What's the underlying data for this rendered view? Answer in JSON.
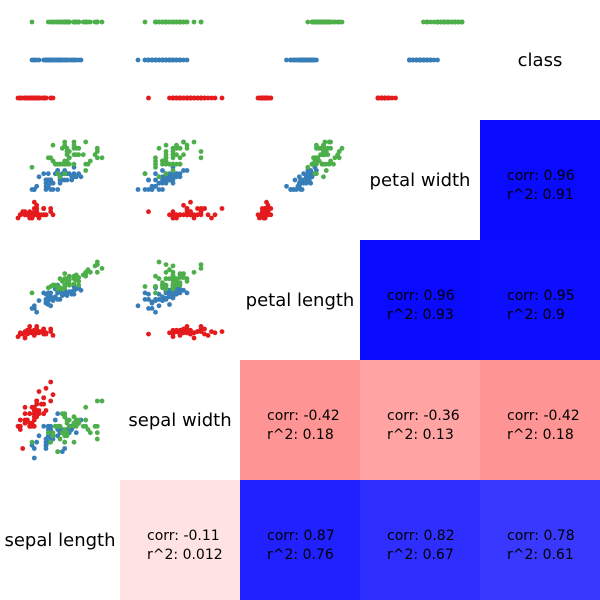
{
  "variables": [
    "sepal length",
    "sepal width",
    "petal length",
    "petal width",
    "class"
  ],
  "colors": {
    "setosa": "#e41a1c",
    "versicolor": "#377eb8",
    "virginica": "#4daf4a",
    "corr_positive": "#0000ff",
    "corr_negative": "#ff0000"
  },
  "chart_data": {
    "type": "scatter",
    "title": "",
    "layout": "pair-plot matrix; scatter panels upper-left, correlation tiles lower-right, variable names on the anti-diagonal",
    "correlations": [
      {
        "pair": [
          "sepal length",
          "sepal width"
        ],
        "corr": "-0.11",
        "r2": "0.012",
        "value": -0.11
      },
      {
        "pair": [
          "sepal length",
          "petal length"
        ],
        "corr": "0.87",
        "r2": "0.76",
        "value": 0.87
      },
      {
        "pair": [
          "sepal length",
          "petal width"
        ],
        "corr": "0.82",
        "r2": "0.67",
        "value": 0.82
      },
      {
        "pair": [
          "sepal length",
          "class"
        ],
        "corr": "0.78",
        "r2": "0.61",
        "value": 0.78
      },
      {
        "pair": [
          "sepal width",
          "petal length"
        ],
        "corr": "-0.42",
        "r2": "0.18",
        "value": -0.42
      },
      {
        "pair": [
          "sepal width",
          "petal width"
        ],
        "corr": "-0.36",
        "r2": "0.13",
        "value": -0.36
      },
      {
        "pair": [
          "sepal width",
          "class"
        ],
        "corr": "-0.42",
        "r2": "0.18",
        "value": -0.42
      },
      {
        "pair": [
          "petal length",
          "petal width"
        ],
        "corr": "0.96",
        "r2": "0.93",
        "value": 0.96
      },
      {
        "pair": [
          "petal length",
          "class"
        ],
        "corr": "0.95",
        "r2": "0.9",
        "value": 0.95
      },
      {
        "pair": [
          "petal width",
          "class"
        ],
        "corr": "0.96",
        "r2": "0.91",
        "value": 0.96
      }
    ],
    "series": [
      {
        "color": "#e41a1c",
        "sepal_length": [
          5.1,
          4.9,
          4.7,
          4.6,
          5.0,
          5.4,
          4.6,
          5.0,
          4.4,
          4.9,
          5.4,
          4.8,
          4.8,
          4.3,
          5.8,
          5.7,
          5.4,
          5.1,
          5.7,
          5.1,
          5.4,
          5.1,
          4.6,
          5.1,
          4.8,
          5.0,
          5.0,
          5.2,
          5.2,
          4.7,
          4.8,
          5.4,
          5.2,
          5.5,
          4.9,
          5.0,
          5.5,
          4.9,
          4.4,
          5.1,
          5.0,
          4.5,
          4.4,
          5.0,
          5.1,
          4.8,
          5.1,
          4.6,
          5.3,
          5.0
        ],
        "sepal_width": [
          3.5,
          3.0,
          3.2,
          3.1,
          3.6,
          3.9,
          3.4,
          3.4,
          2.9,
          3.1,
          3.7,
          3.4,
          3.0,
          3.0,
          4.0,
          4.4,
          3.9,
          3.5,
          3.8,
          3.8,
          3.4,
          3.7,
          3.6,
          3.3,
          3.4,
          3.0,
          3.4,
          3.5,
          3.4,
          3.2,
          3.1,
          3.4,
          4.1,
          4.2,
          3.1,
          3.2,
          3.5,
          3.6,
          3.0,
          3.4,
          3.5,
          2.3,
          3.2,
          3.5,
          3.8,
          3.0,
          3.8,
          3.2,
          3.7,
          3.3
        ],
        "petal_length": [
          1.4,
          1.4,
          1.3,
          1.5,
          1.4,
          1.7,
          1.4,
          1.5,
          1.4,
          1.5,
          1.5,
          1.6,
          1.4,
          1.1,
          1.2,
          1.5,
          1.3,
          1.4,
          1.7,
          1.5,
          1.7,
          1.5,
          1.0,
          1.7,
          1.9,
          1.6,
          1.6,
          1.5,
          1.4,
          1.6,
          1.6,
          1.5,
          1.5,
          1.4,
          1.5,
          1.2,
          1.3,
          1.4,
          1.3,
          1.5,
          1.3,
          1.3,
          1.3,
          1.6,
          1.9,
          1.4,
          1.6,
          1.4,
          1.5,
          1.4
        ],
        "petal_width": [
          0.2,
          0.2,
          0.2,
          0.2,
          0.2,
          0.4,
          0.3,
          0.2,
          0.2,
          0.1,
          0.2,
          0.2,
          0.1,
          0.1,
          0.2,
          0.4,
          0.4,
          0.3,
          0.3,
          0.3,
          0.2,
          0.4,
          0.2,
          0.5,
          0.2,
          0.2,
          0.4,
          0.2,
          0.2,
          0.2,
          0.2,
          0.4,
          0.1,
          0.2,
          0.2,
          0.2,
          0.2,
          0.1,
          0.2,
          0.2,
          0.3,
          0.3,
          0.2,
          0.6,
          0.4,
          0.3,
          0.2,
          0.2,
          0.2,
          0.2
        ],
        "class": [
          0,
          0,
          0,
          0,
          0,
          0,
          0,
          0,
          0,
          0,
          0,
          0,
          0,
          0,
          0,
          0,
          0,
          0,
          0,
          0,
          0,
          0,
          0,
          0,
          0,
          0,
          0,
          0,
          0,
          0,
          0,
          0,
          0,
          0,
          0,
          0,
          0,
          0,
          0,
          0,
          0,
          0,
          0,
          0,
          0,
          0,
          0,
          0,
          0,
          0
        ]
      },
      {
        "color": "#377eb8",
        "sepal_length": [
          7.0,
          6.4,
          6.9,
          5.5,
          6.5,
          5.7,
          6.3,
          4.9,
          6.6,
          5.2,
          5.0,
          5.9,
          6.0,
          6.1,
          5.6,
          6.7,
          5.6,
          5.8,
          6.2,
          5.6,
          5.9,
          6.1,
          6.3,
          6.1,
          6.4,
          6.6,
          6.8,
          6.7,
          6.0,
          5.7,
          5.5,
          5.5,
          5.8,
          6.0,
          5.4,
          6.0,
          6.7,
          6.3,
          5.6,
          5.5,
          5.5,
          6.1,
          5.8,
          5.0,
          5.6,
          5.7,
          5.7,
          6.2,
          5.1,
          5.7
        ],
        "sepal_width": [
          3.2,
          3.2,
          3.1,
          2.3,
          2.8,
          2.8,
          3.3,
          2.4,
          2.9,
          2.7,
          2.0,
          3.0,
          2.2,
          2.9,
          2.9,
          3.1,
          3.0,
          2.7,
          2.2,
          2.5,
          3.2,
          2.8,
          2.5,
          2.8,
          2.9,
          3.0,
          2.8,
          3.0,
          2.9,
          2.6,
          2.4,
          2.4,
          2.7,
          2.7,
          3.0,
          3.4,
          3.1,
          2.3,
          3.0,
          2.5,
          2.6,
          3.0,
          2.6,
          2.3,
          2.7,
          3.0,
          2.9,
          2.9,
          2.5,
          2.8
        ],
        "petal_length": [
          4.7,
          4.5,
          4.9,
          4.0,
          4.6,
          4.5,
          4.7,
          3.3,
          4.6,
          3.9,
          3.5,
          4.2,
          4.0,
          4.7,
          3.6,
          4.4,
          4.5,
          4.1,
          4.5,
          3.9,
          4.8,
          4.0,
          4.9,
          4.7,
          4.3,
          4.4,
          4.8,
          5.0,
          4.5,
          3.5,
          3.8,
          3.7,
          3.9,
          5.1,
          4.5,
          4.5,
          4.7,
          4.4,
          4.1,
          4.0,
          4.4,
          4.6,
          4.0,
          3.3,
          4.2,
          4.2,
          4.2,
          4.3,
          3.0,
          4.1
        ],
        "petal_width": [
          1.4,
          1.5,
          1.5,
          1.3,
          1.5,
          1.3,
          1.6,
          1.0,
          1.3,
          1.4,
          1.0,
          1.5,
          1.0,
          1.4,
          1.3,
          1.4,
          1.5,
          1.0,
          1.5,
          1.1,
          1.8,
          1.3,
          1.5,
          1.2,
          1.3,
          1.4,
          1.4,
          1.7,
          1.5,
          1.0,
          1.1,
          1.0,
          1.2,
          1.6,
          1.5,
          1.6,
          1.5,
          1.3,
          1.3,
          1.3,
          1.2,
          1.4,
          1.2,
          1.0,
          1.3,
          1.2,
          1.3,
          1.3,
          1.1,
          1.3
        ],
        "class": [
          1,
          1,
          1,
          1,
          1,
          1,
          1,
          1,
          1,
          1,
          1,
          1,
          1,
          1,
          1,
          1,
          1,
          1,
          1,
          1,
          1,
          1,
          1,
          1,
          1,
          1,
          1,
          1,
          1,
          1,
          1,
          1,
          1,
          1,
          1,
          1,
          1,
          1,
          1,
          1,
          1,
          1,
          1,
          1,
          1,
          1,
          1,
          1,
          1,
          1
        ]
      },
      {
        "color": "#4daf4a",
        "sepal_length": [
          6.3,
          5.8,
          7.1,
          6.3,
          6.5,
          7.6,
          4.9,
          7.3,
          6.7,
          7.2,
          6.5,
          6.4,
          6.8,
          5.7,
          5.8,
          6.4,
          6.5,
          7.7,
          7.7,
          6.0,
          6.9,
          5.6,
          7.7,
          6.3,
          6.7,
          7.2,
          6.2,
          6.1,
          6.4,
          7.2,
          7.4,
          7.9,
          6.4,
          6.3,
          6.1,
          7.7,
          6.3,
          6.4,
          6.0,
          6.9,
          6.7,
          6.9,
          5.8,
          6.8,
          6.7,
          6.7,
          6.3,
          6.5,
          6.2,
          5.9
        ],
        "sepal_width": [
          3.3,
          2.7,
          3.0,
          2.9,
          3.0,
          3.0,
          2.5,
          2.9,
          2.5,
          3.6,
          3.2,
          2.7,
          3.0,
          2.5,
          2.8,
          3.2,
          3.0,
          3.8,
          2.6,
          2.2,
          3.2,
          2.8,
          2.8,
          2.7,
          3.3,
          3.2,
          2.8,
          3.0,
          2.8,
          3.0,
          2.8,
          3.8,
          2.8,
          2.8,
          2.6,
          3.0,
          3.4,
          3.1,
          3.0,
          3.1,
          3.1,
          3.1,
          2.7,
          3.2,
          3.3,
          3.0,
          2.5,
          3.0,
          3.4,
          3.0
        ],
        "petal_length": [
          6.0,
          5.1,
          5.9,
          5.6,
          5.8,
          6.6,
          4.5,
          6.3,
          5.8,
          6.1,
          5.1,
          5.3,
          5.5,
          5.0,
          5.1,
          5.3,
          5.5,
          6.7,
          6.9,
          5.0,
          5.7,
          4.9,
          6.7,
          4.9,
          5.7,
          6.0,
          4.8,
          4.9,
          5.6,
          5.8,
          6.1,
          6.4,
          5.6,
          5.1,
          5.6,
          6.1,
          5.6,
          5.5,
          4.8,
          5.4,
          5.6,
          5.1,
          5.1,
          5.9,
          5.7,
          5.2,
          5.0,
          5.2,
          5.4,
          5.1
        ],
        "petal_width": [
          2.5,
          1.9,
          2.1,
          1.8,
          2.2,
          2.1,
          1.7,
          1.8,
          1.8,
          2.5,
          2.0,
          1.9,
          2.1,
          2.0,
          2.4,
          2.3,
          1.8,
          2.2,
          2.3,
          1.5,
          2.3,
          2.0,
          2.0,
          1.8,
          2.1,
          1.8,
          1.8,
          1.8,
          2.1,
          1.6,
          1.9,
          2.0,
          2.2,
          1.5,
          1.4,
          2.3,
          2.4,
          1.8,
          1.8,
          2.1,
          2.4,
          2.3,
          1.9,
          2.3,
          2.5,
          2.3,
          1.9,
          2.0,
          2.3,
          1.8
        ],
        "class": [
          2,
          2,
          2,
          2,
          2,
          2,
          2,
          2,
          2,
          2,
          2,
          2,
          2,
          2,
          2,
          2,
          2,
          2,
          2,
          2,
          2,
          2,
          2,
          2,
          2,
          2,
          2,
          2,
          2,
          2,
          2,
          2,
          2,
          2,
          2,
          2,
          2,
          2,
          2,
          2,
          2,
          2,
          2,
          2,
          2,
          2,
          2,
          2,
          2,
          2
        ]
      }
    ]
  }
}
